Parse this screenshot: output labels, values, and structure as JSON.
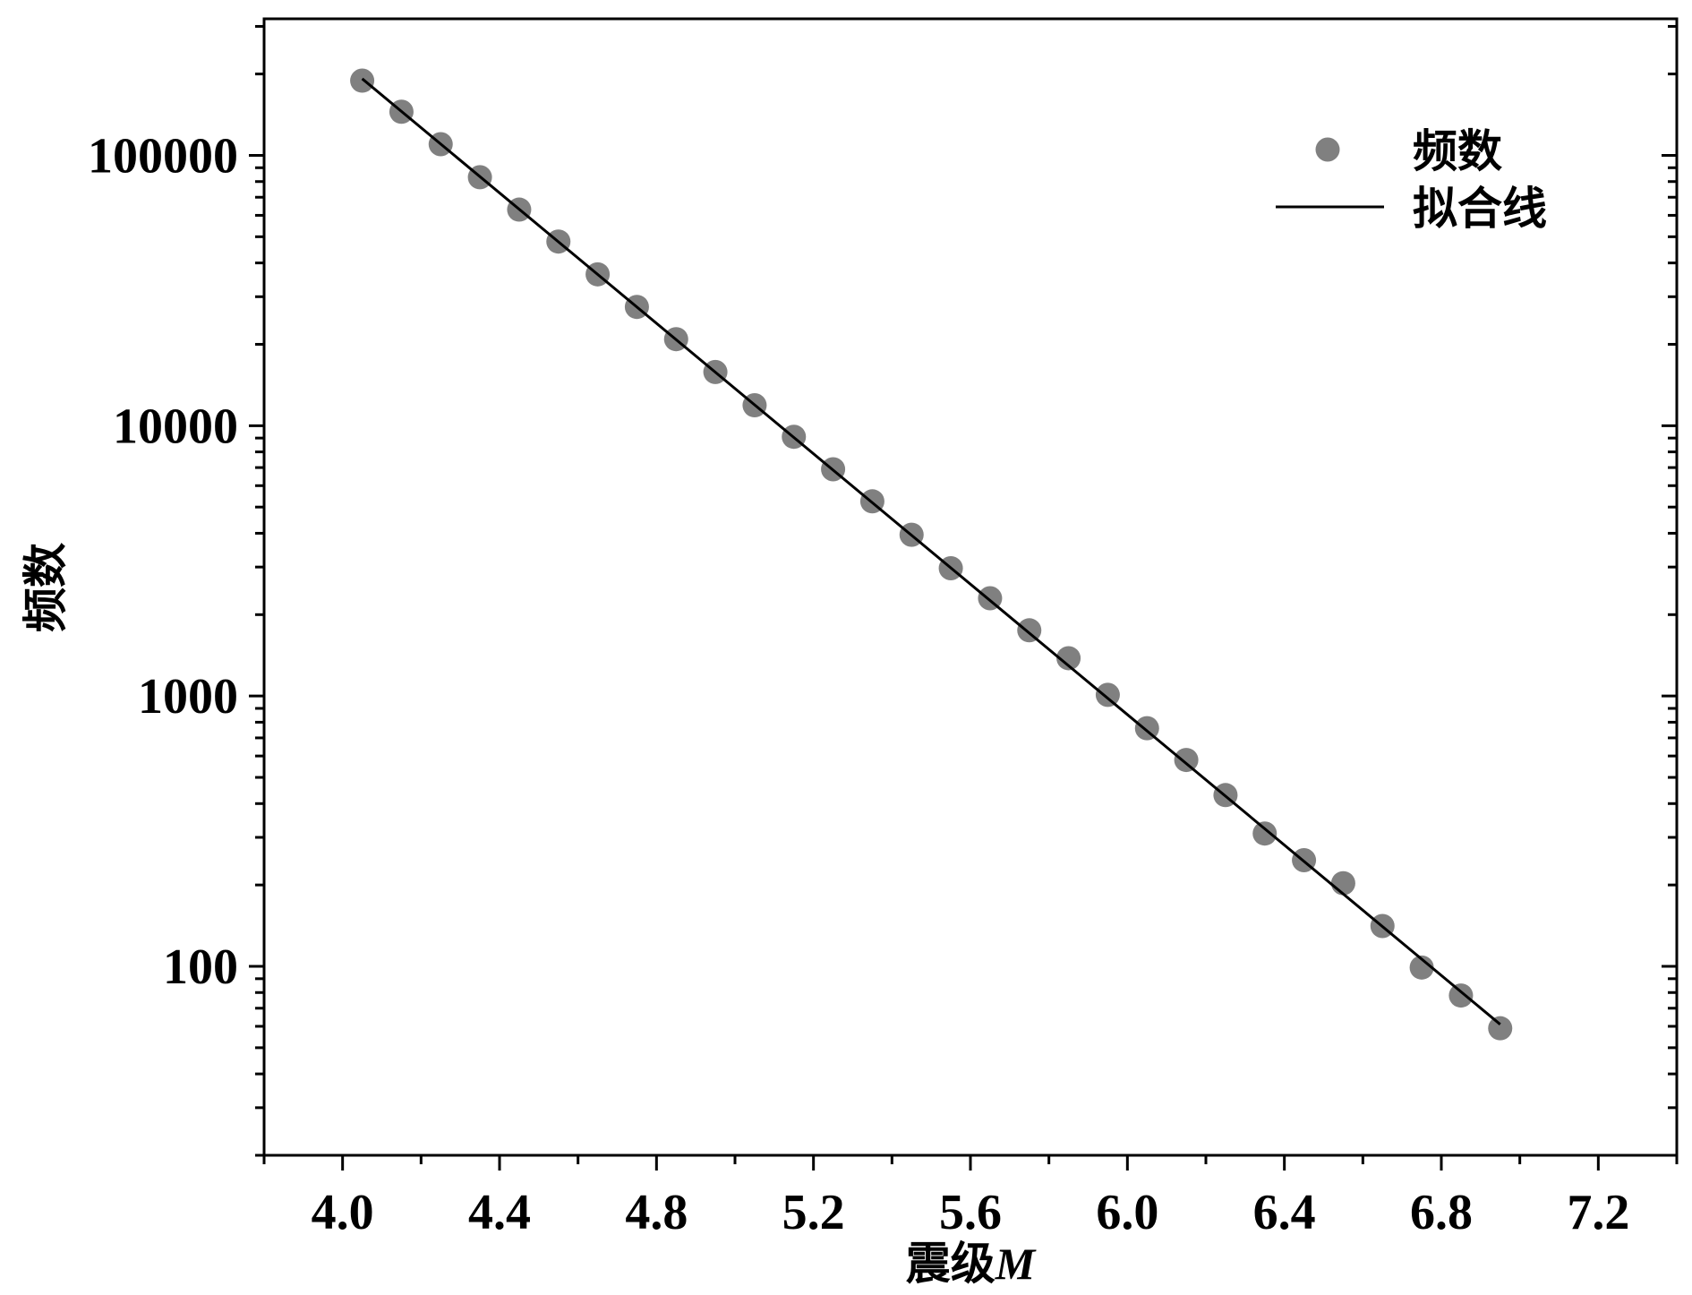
{
  "chart_data": {
    "type": "scatter",
    "xlabel": "震级M",
    "ylabel": "频数",
    "xlim": [
      3.8,
      7.4
    ],
    "ylim": [
      20,
      320000
    ],
    "yscale": "log",
    "grid": false,
    "legend_position": "top-right",
    "x_tick_labels": [
      "4.0",
      "4.4",
      "4.8",
      "5.2",
      "5.6",
      "6.0",
      "6.4",
      "6.8",
      "7.2"
    ],
    "y_tick_labels": [
      "100",
      "1000",
      "10000",
      "100000"
    ],
    "series": [
      {
        "name": "频数",
        "type": "scatter",
        "color": "#808080",
        "x": [
          4.05,
          4.15,
          4.25,
          4.35,
          4.45,
          4.55,
          4.65,
          4.75,
          4.85,
          4.95,
          5.05,
          5.15,
          5.25,
          5.35,
          5.45,
          5.55,
          5.65,
          5.75,
          5.85,
          5.95,
          6.05,
          6.15,
          6.25,
          6.35,
          6.45,
          6.55,
          6.65,
          6.75,
          6.85,
          6.95
        ],
        "y": [
          189000,
          145000,
          110000,
          83000,
          63000,
          48000,
          36300,
          27500,
          20900,
          15800,
          11900,
          9100,
          6900,
          5250,
          3950,
          2970,
          2300,
          1750,
          1380,
          1010,
          760,
          580,
          430,
          310,
          247,
          203,
          141,
          99,
          78,
          59
        ]
      },
      {
        "name": "拟合线",
        "type": "line",
        "color": "#000000",
        "x": [
          4.05,
          6.95
        ],
        "y": [
          192000,
          61
        ]
      }
    ]
  }
}
